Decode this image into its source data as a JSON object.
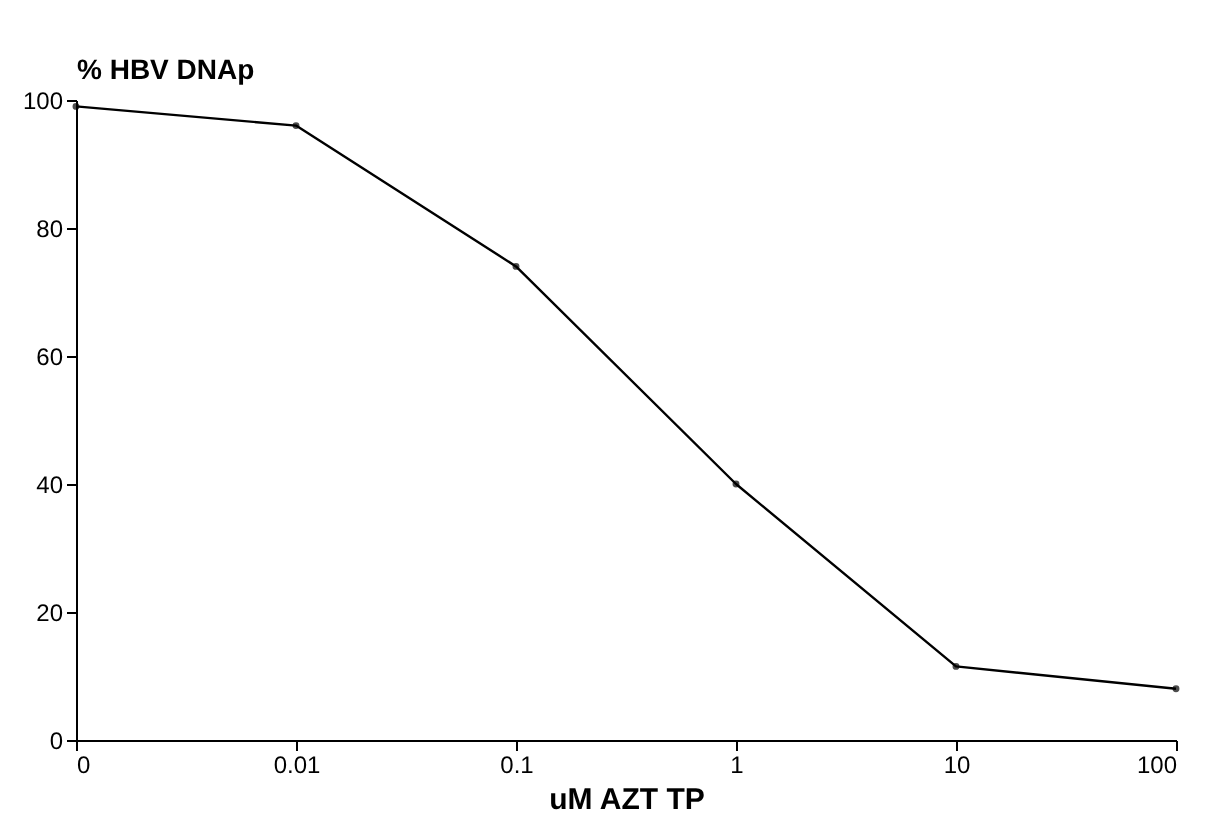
{
  "chart_data": {
    "type": "line",
    "xlabel": "uM AZT TP",
    "ylabel": "% HBV DNAp",
    "categories": [
      "0",
      "0.01",
      "0.1",
      "1",
      "10",
      "100"
    ],
    "series": [
      {
        "color": "#000000",
        "values": [
          99,
          96,
          74,
          40,
          11.5,
          8
        ]
      }
    ],
    "ylim": [
      0,
      100
    ],
    "yticks": [
      0,
      20,
      40,
      60,
      80,
      100
    ],
    "grid": false,
    "legend": false,
    "marker": "circle",
    "line_style": "solid"
  }
}
